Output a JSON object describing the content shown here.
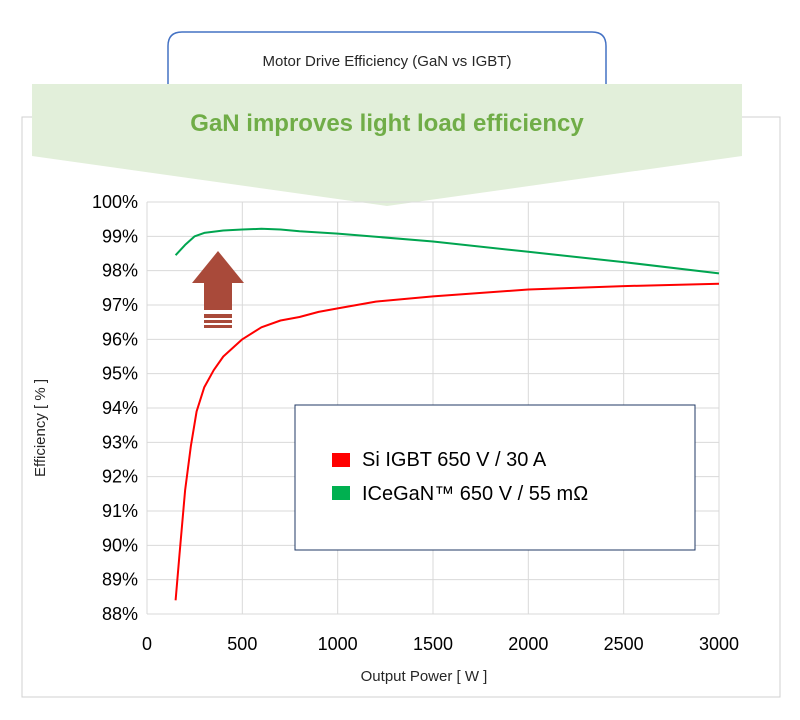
{
  "chart_data": {
    "type": "line",
    "title": "Motor Drive Efficiency (GaN vs IGBT)",
    "banner": "GaN improves light load efficiency",
    "xlabel": "Output Power [ W ]",
    "ylabel": "Efficiency [ % ]",
    "xlim": [
      0,
      3000
    ],
    "ylim": [
      88,
      100
    ],
    "x_ticks": [
      0,
      500,
      1000,
      1500,
      2000,
      2500,
      3000
    ],
    "y_ticks": [
      88,
      89,
      90,
      91,
      92,
      93,
      94,
      95,
      96,
      97,
      98,
      99,
      100
    ],
    "y_tick_labels": [
      "88%",
      "89%",
      "90%",
      "91%",
      "92%",
      "93%",
      "94%",
      "95%",
      "96%",
      "97%",
      "98%",
      "99%",
      "100%"
    ],
    "grid": true,
    "legend_position": "inside-right",
    "series": [
      {
        "name": "Si IGBT 650 V / 30 A",
        "color": "#ff0000",
        "points": [
          [
            150,
            88.4
          ],
          [
            170,
            89.7
          ],
          [
            200,
            91.6
          ],
          [
            230,
            92.9
          ],
          [
            260,
            93.9
          ],
          [
            300,
            94.6
          ],
          [
            350,
            95.1
          ],
          [
            400,
            95.5
          ],
          [
            500,
            96.0
          ],
          [
            600,
            96.35
          ],
          [
            700,
            96.55
          ],
          [
            800,
            96.65
          ],
          [
            900,
            96.8
          ],
          [
            1000,
            96.9
          ],
          [
            1200,
            97.1
          ],
          [
            1500,
            97.25
          ],
          [
            2000,
            97.45
          ],
          [
            2500,
            97.55
          ],
          [
            3000,
            97.62
          ]
        ]
      },
      {
        "name": "ICeGaN™ 650 V / 55 mΩ",
        "color": "#00a550",
        "points": [
          [
            150,
            98.45
          ],
          [
            200,
            98.75
          ],
          [
            250,
            99.0
          ],
          [
            300,
            99.1
          ],
          [
            400,
            99.17
          ],
          [
            500,
            99.2
          ],
          [
            600,
            99.22
          ],
          [
            700,
            99.2
          ],
          [
            800,
            99.15
          ],
          [
            1000,
            99.08
          ],
          [
            1500,
            98.85
          ],
          [
            2000,
            98.55
          ],
          [
            2500,
            98.25
          ],
          [
            3000,
            97.92
          ]
        ]
      }
    ]
  },
  "colors": {
    "banner_fill": "#e2efda",
    "banner_text": "#70ad47",
    "arrow_fill": "#a94a3a",
    "title_box_border": "#4472c4",
    "legend_border": "#203864",
    "grid": "#d9d9d9"
  }
}
